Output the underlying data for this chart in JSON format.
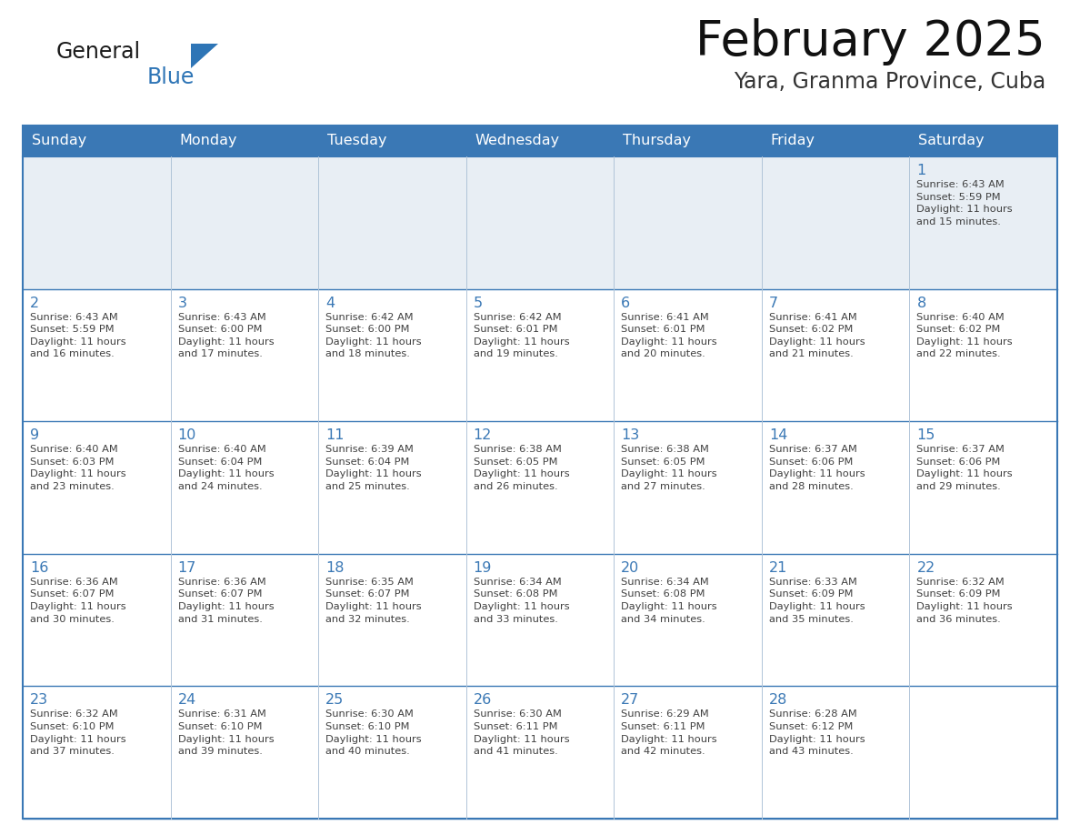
{
  "title": "February 2025",
  "subtitle": "Yara, Granma Province, Cuba",
  "header_color": "#3A78B5",
  "header_text_color": "#FFFFFF",
  "header_days": [
    "Sunday",
    "Monday",
    "Tuesday",
    "Wednesday",
    "Thursday",
    "Friday",
    "Saturday"
  ],
  "cell_bg_color": "#FFFFFF",
  "row1_bg_color": "#E8EEF4",
  "border_color": "#3A78B5",
  "grid_color": "#B0C4D8",
  "text_color": "#404040",
  "day_number_color": "#3A78B5",
  "logo_general_color": "#1A1A1A",
  "logo_blue_color": "#2E75B6",
  "weeks": [
    [
      {
        "day": null,
        "info": null
      },
      {
        "day": null,
        "info": null
      },
      {
        "day": null,
        "info": null
      },
      {
        "day": null,
        "info": null
      },
      {
        "day": null,
        "info": null
      },
      {
        "day": null,
        "info": null
      },
      {
        "day": 1,
        "info": "Sunrise: 6:43 AM\nSunset: 5:59 PM\nDaylight: 11 hours\nand 15 minutes."
      }
    ],
    [
      {
        "day": 2,
        "info": "Sunrise: 6:43 AM\nSunset: 5:59 PM\nDaylight: 11 hours\nand 16 minutes."
      },
      {
        "day": 3,
        "info": "Sunrise: 6:43 AM\nSunset: 6:00 PM\nDaylight: 11 hours\nand 17 minutes."
      },
      {
        "day": 4,
        "info": "Sunrise: 6:42 AM\nSunset: 6:00 PM\nDaylight: 11 hours\nand 18 minutes."
      },
      {
        "day": 5,
        "info": "Sunrise: 6:42 AM\nSunset: 6:01 PM\nDaylight: 11 hours\nand 19 minutes."
      },
      {
        "day": 6,
        "info": "Sunrise: 6:41 AM\nSunset: 6:01 PM\nDaylight: 11 hours\nand 20 minutes."
      },
      {
        "day": 7,
        "info": "Sunrise: 6:41 AM\nSunset: 6:02 PM\nDaylight: 11 hours\nand 21 minutes."
      },
      {
        "day": 8,
        "info": "Sunrise: 6:40 AM\nSunset: 6:02 PM\nDaylight: 11 hours\nand 22 minutes."
      }
    ],
    [
      {
        "day": 9,
        "info": "Sunrise: 6:40 AM\nSunset: 6:03 PM\nDaylight: 11 hours\nand 23 minutes."
      },
      {
        "day": 10,
        "info": "Sunrise: 6:40 AM\nSunset: 6:04 PM\nDaylight: 11 hours\nand 24 minutes."
      },
      {
        "day": 11,
        "info": "Sunrise: 6:39 AM\nSunset: 6:04 PM\nDaylight: 11 hours\nand 25 minutes."
      },
      {
        "day": 12,
        "info": "Sunrise: 6:38 AM\nSunset: 6:05 PM\nDaylight: 11 hours\nand 26 minutes."
      },
      {
        "day": 13,
        "info": "Sunrise: 6:38 AM\nSunset: 6:05 PM\nDaylight: 11 hours\nand 27 minutes."
      },
      {
        "day": 14,
        "info": "Sunrise: 6:37 AM\nSunset: 6:06 PM\nDaylight: 11 hours\nand 28 minutes."
      },
      {
        "day": 15,
        "info": "Sunrise: 6:37 AM\nSunset: 6:06 PM\nDaylight: 11 hours\nand 29 minutes."
      }
    ],
    [
      {
        "day": 16,
        "info": "Sunrise: 6:36 AM\nSunset: 6:07 PM\nDaylight: 11 hours\nand 30 minutes."
      },
      {
        "day": 17,
        "info": "Sunrise: 6:36 AM\nSunset: 6:07 PM\nDaylight: 11 hours\nand 31 minutes."
      },
      {
        "day": 18,
        "info": "Sunrise: 6:35 AM\nSunset: 6:07 PM\nDaylight: 11 hours\nand 32 minutes."
      },
      {
        "day": 19,
        "info": "Sunrise: 6:34 AM\nSunset: 6:08 PM\nDaylight: 11 hours\nand 33 minutes."
      },
      {
        "day": 20,
        "info": "Sunrise: 6:34 AM\nSunset: 6:08 PM\nDaylight: 11 hours\nand 34 minutes."
      },
      {
        "day": 21,
        "info": "Sunrise: 6:33 AM\nSunset: 6:09 PM\nDaylight: 11 hours\nand 35 minutes."
      },
      {
        "day": 22,
        "info": "Sunrise: 6:32 AM\nSunset: 6:09 PM\nDaylight: 11 hours\nand 36 minutes."
      }
    ],
    [
      {
        "day": 23,
        "info": "Sunrise: 6:32 AM\nSunset: 6:10 PM\nDaylight: 11 hours\nand 37 minutes."
      },
      {
        "day": 24,
        "info": "Sunrise: 6:31 AM\nSunset: 6:10 PM\nDaylight: 11 hours\nand 39 minutes."
      },
      {
        "day": 25,
        "info": "Sunrise: 6:30 AM\nSunset: 6:10 PM\nDaylight: 11 hours\nand 40 minutes."
      },
      {
        "day": 26,
        "info": "Sunrise: 6:30 AM\nSunset: 6:11 PM\nDaylight: 11 hours\nand 41 minutes."
      },
      {
        "day": 27,
        "info": "Sunrise: 6:29 AM\nSunset: 6:11 PM\nDaylight: 11 hours\nand 42 minutes."
      },
      {
        "day": 28,
        "info": "Sunrise: 6:28 AM\nSunset: 6:12 PM\nDaylight: 11 hours\nand 43 minutes."
      },
      {
        "day": null,
        "info": null
      }
    ]
  ]
}
